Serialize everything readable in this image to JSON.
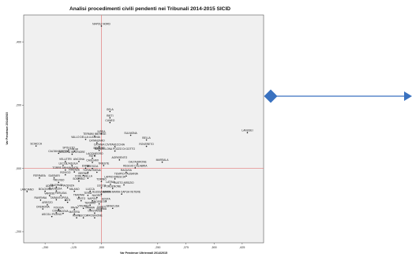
{
  "chart_data": {
    "type": "scatter",
    "title": "Analisi procedimenti civili pendenti nei Tribunali 2014-2015 SICID",
    "xlabel": "Var Pendenze Ultriennali 2014/2015",
    "ylabel": "Var Pendenze 2014/2015",
    "xlim": [
      -0.345,
      0.72
    ],
    "ylim": [
      -0.235,
      0.485
    ],
    "x_ticks": [
      {
        "value": -0.25,
        "label": "-,250"
      },
      {
        "value": -0.125,
        "label": "-,125"
      },
      {
        "value": 0.0,
        "label": ",000"
      },
      {
        "value": 0.25,
        "label": ",250"
      },
      {
        "value": 0.375,
        "label": ",375"
      },
      {
        "value": 0.5,
        "label": ",500"
      },
      {
        "value": 0.625,
        "label": ",625"
      }
    ],
    "y_ticks": [
      {
        "value": -0.2,
        "label": "-,200"
      },
      {
        "value": 0.0,
        "label": ",000"
      },
      {
        "value": 0.2,
        "label": ",200"
      },
      {
        "value": 0.4,
        "label": ",400"
      }
    ],
    "reference_lines": {
      "x": 0.0,
      "y": 0.0,
      "color": "#e27a7a"
    },
    "grid": false,
    "plot_background": "#f0f0f0",
    "point_color": "#1a1a1a",
    "points": [
      {
        "label": "NAPOLI NORD",
        "x": 0.0,
        "y": 0.45
      },
      {
        "label": "GELA",
        "x": 0.038,
        "y": 0.18
      },
      {
        "label": "RIETI",
        "x": 0.038,
        "y": 0.16
      },
      {
        "label": "CUNEO",
        "x": 0.038,
        "y": 0.145
      },
      {
        "label": "LANUSEI",
        "x": 0.648,
        "y": 0.113
      },
      {
        "label": "IVREA",
        "x": 0.0,
        "y": 0.11
      },
      {
        "label": "TERMINI IMERESE",
        "x": -0.03,
        "y": 0.102
      },
      {
        "label": "SULMONA",
        "x": 0.13,
        "y": 0.105
      },
      {
        "label": "VALLO DELLA LUCANIA",
        "x": -0.07,
        "y": 0.092
      },
      {
        "label": "BELLA",
        "x": 0.2,
        "y": 0.09
      },
      {
        "label": "CATANZARO",
        "x": -0.02,
        "y": 0.081
      },
      {
        "label": "ROVERETO",
        "x": 0.2,
        "y": 0.07
      },
      {
        "label": "CATANIA",
        "x": -0.01,
        "y": 0.069
      },
      {
        "label": "CIVITAVECCHIA",
        "x": 0.06,
        "y": 0.069
      },
      {
        "label": "SCIACCA",
        "x": -0.29,
        "y": 0.071
      },
      {
        "label": "SPOLETO",
        "x": -0.145,
        "y": 0.059
      },
      {
        "label": "PALMI",
        "x": -0.12,
        "y": 0.054
      },
      {
        "label": "BRINDISI",
        "x": -0.01,
        "y": 0.057
      },
      {
        "label": "BARCELLONA POZZO DI GOTTO",
        "x": 0.06,
        "y": 0.055
      },
      {
        "label": "CALTANISSETTA",
        "x": -0.19,
        "y": 0.048
      },
      {
        "label": "NOCERA INFERIORE",
        "x": -0.13,
        "y": 0.045
      },
      {
        "label": "LAGONEGRO",
        "x": -0.03,
        "y": 0.04
      },
      {
        "label": "PATTI",
        "x": -0.04,
        "y": 0.032
      },
      {
        "label": "AGRIGENTO",
        "x": 0.08,
        "y": 0.027
      },
      {
        "label": "VELLETRI",
        "x": -0.16,
        "y": 0.022
      },
      {
        "label": "ANCONA",
        "x": -0.1,
        "y": 0.022
      },
      {
        "label": "CAGLIARI",
        "x": -0.04,
        "y": 0.019
      },
      {
        "label": "CALTAGIRONE",
        "x": 0.16,
        "y": 0.014
      },
      {
        "label": "MARSALA",
        "x": 0.27,
        "y": 0.02
      },
      {
        "label": "LECCE",
        "x": -0.17,
        "y": 0.009
      },
      {
        "label": "L'AQUILA",
        "x": -0.13,
        "y": 0.009
      },
      {
        "label": "TRIESTE",
        "x": 0.01,
        "y": 0.009
      },
      {
        "label": "REGGIO CALABRIA",
        "x": 0.15,
        "y": 0.002
      },
      {
        "label": "TORRE ANNUNZIATA",
        "x": -0.16,
        "y": -0.005
      },
      {
        "label": "ENNA",
        "x": -0.07,
        "y": 0.001
      },
      {
        "label": "BRESCIA",
        "x": -0.04,
        "y": 0.0
      },
      {
        "label": "FIRENZE",
        "x": -0.12,
        "y": -0.011
      },
      {
        "label": "TORINO",
        "x": -0.06,
        "y": -0.012
      },
      {
        "label": "SIENA",
        "x": -0.02,
        "y": -0.012
      },
      {
        "label": "RAGUSA",
        "x": 0.11,
        "y": -0.012
      },
      {
        "label": "ROVIGO",
        "x": -0.16,
        "y": -0.02
      },
      {
        "label": "ISERNIA",
        "x": -0.08,
        "y": -0.022
      },
      {
        "label": "TEMPIO PAUSANIA",
        "x": 0.11,
        "y": -0.024
      },
      {
        "label": "FERRARA",
        "x": -0.275,
        "y": -0.03
      },
      {
        "label": "SASSARI",
        "x": -0.21,
        "y": -0.03
      },
      {
        "label": "FORLI",
        "x": -0.1,
        "y": -0.031
      },
      {
        "label": "BIELLA",
        "x": -0.06,
        "y": -0.031
      },
      {
        "label": "LAPRO BRESCIA",
        "x": 0.06,
        "y": -0.033
      },
      {
        "label": "TREVISO",
        "x": -0.19,
        "y": -0.044
      },
      {
        "label": "SONDRIO",
        "x": -0.1,
        "y": -0.04
      },
      {
        "label": "TORINO",
        "x": 0.0,
        "y": -0.041
      },
      {
        "label": "LATINA",
        "x": 0.04,
        "y": -0.05
      },
      {
        "label": "BUSTO ARSIZIO",
        "x": 0.1,
        "y": -0.052
      },
      {
        "label": "UDINE",
        "x": -0.23,
        "y": -0.062
      },
      {
        "label": "PALERMO",
        "x": -0.2,
        "y": -0.059
      },
      {
        "label": "PIACENZA",
        "x": -0.15,
        "y": -0.061
      },
      {
        "label": "LECCO",
        "x": 0.0,
        "y": -0.061
      },
      {
        "label": "PORDENONE",
        "x": 0.05,
        "y": -0.063
      },
      {
        "label": "BOLOGNA",
        "x": -0.25,
        "y": -0.072
      },
      {
        "label": "VENEZIA",
        "x": -0.2,
        "y": -0.071
      },
      {
        "label": "MILANO",
        "x": -0.12,
        "y": -0.072
      },
      {
        "label": "LUCCA",
        "x": -0.05,
        "y": -0.072
      },
      {
        "label": "LANCIANO",
        "x": -0.33,
        "y": -0.073
      },
      {
        "label": "ALESSANDRIA",
        "x": 0.0,
        "y": -0.081
      },
      {
        "label": "SANTA MARIA CAPUA VETERE",
        "x": 0.09,
        "y": -0.081
      },
      {
        "label": "VARESE",
        "x": -0.23,
        "y": -0.086
      },
      {
        "label": "PERUGIA",
        "x": -0.18,
        "y": -0.085
      },
      {
        "label": "TRAPANI",
        "x": -0.1,
        "y": -0.091
      },
      {
        "label": "NUORO",
        "x": -0.02,
        "y": -0.092
      },
      {
        "label": "TERNI",
        "x": -0.06,
        "y": -0.085
      },
      {
        "label": "RAVENNA",
        "x": -0.27,
        "y": -0.1
      },
      {
        "label": "TARANTO",
        "x": -0.2,
        "y": -0.099
      },
      {
        "label": "PISA",
        "x": -0.16,
        "y": -0.1
      },
      {
        "label": "VASTO",
        "x": -0.09,
        "y": -0.102
      },
      {
        "label": "NAPOLI",
        "x": -0.04,
        "y": -0.102
      },
      {
        "label": "AOSTA",
        "x": 0.02,
        "y": -0.103
      },
      {
        "label": "ASTI",
        "x": -0.15,
        "y": -0.107
      },
      {
        "label": "AREZZO",
        "x": -0.24,
        "y": -0.115
      },
      {
        "label": "TERAMO",
        "x": -0.05,
        "y": -0.116
      },
      {
        "label": "GROSSETO",
        "x": -0.01,
        "y": -0.112
      },
      {
        "label": "CREMONA",
        "x": -0.26,
        "y": -0.128
      },
      {
        "label": "FOGGIA",
        "x": -0.19,
        "y": -0.13
      },
      {
        "label": "PAVIA",
        "x": -0.12,
        "y": -0.13
      },
      {
        "label": "VITERBO",
        "x": -0.08,
        "y": -0.126
      },
      {
        "label": "PARMA",
        "x": -0.05,
        "y": -0.13
      },
      {
        "label": "CHIETI",
        "x": 0.0,
        "y": -0.128
      },
      {
        "label": "SIRACUSA",
        "x": 0.05,
        "y": -0.126
      },
      {
        "label": "ISERNIA",
        "x": 0.0,
        "y": -0.134
      },
      {
        "label": "COMO",
        "x": -0.2,
        "y": -0.14
      },
      {
        "label": "PADOVA",
        "x": -0.17,
        "y": -0.142
      },
      {
        "label": "MATERA",
        "x": -0.12,
        "y": -0.144
      },
      {
        "label": "ORISTANO",
        "x": -0.03,
        "y": -0.141
      },
      {
        "label": "ASCOLI PICENO",
        "x": -0.22,
        "y": -0.152
      },
      {
        "label": "RIMINI",
        "x": -0.11,
        "y": -0.156
      },
      {
        "label": "LUCCA",
        "x": -0.08,
        "y": -0.156
      },
      {
        "label": "FROSINONE",
        "x": -0.03,
        "y": -0.156
      }
    ]
  },
  "decoration": {
    "arrow_color": "#3a72c0",
    "arrow_marker": "diamond"
  }
}
